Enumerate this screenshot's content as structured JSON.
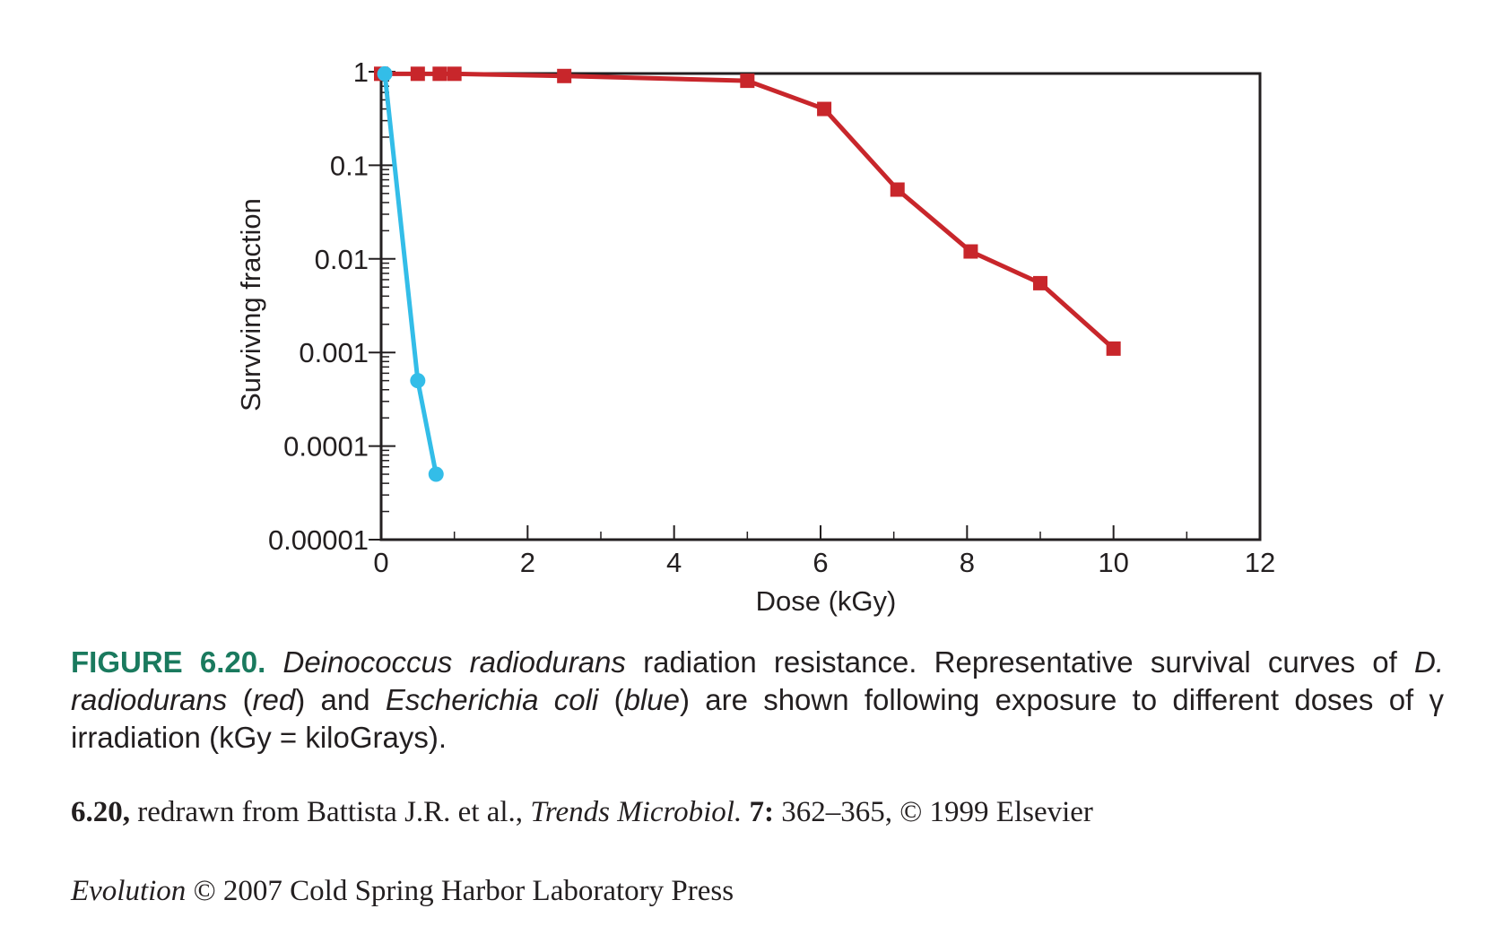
{
  "chart_data": {
    "type": "line",
    "title": "",
    "xlabel": "Dose (kGy)",
    "ylabel": "Surviving fraction",
    "xlim": [
      0,
      12
    ],
    "ylim": [
      1e-05,
      1
    ],
    "y_scale": "log",
    "x_ticks": [
      0,
      2,
      4,
      6,
      8,
      10,
      12
    ],
    "x_tick_labels": [
      "0",
      "2",
      "4",
      "6",
      "8",
      "10",
      "12"
    ],
    "y_ticks": [
      1,
      0.1,
      0.01,
      0.001,
      0.0001,
      1e-05
    ],
    "y_tick_labels": [
      "1",
      "0.1",
      "0.01",
      "0.001",
      "0.0001",
      "0.00001"
    ],
    "grid": false,
    "legend": "none",
    "series": [
      {
        "key": "d_radiodurans",
        "color": "#c8262b",
        "marker": "square",
        "x": [
          0,
          0.5,
          0.8,
          1.0,
          2.5,
          5.0,
          6.05,
          7.05,
          8.05,
          9.0,
          10.0
        ],
        "y": [
          0.95,
          0.95,
          0.95,
          0.95,
          0.9,
          0.8,
          0.4,
          0.055,
          0.012,
          0.0055,
          0.0011
        ]
      },
      {
        "key": "e_coli",
        "color": "#33bde8",
        "marker": "circle",
        "x": [
          0.05,
          0.5,
          0.75
        ],
        "y": [
          0.95,
          0.0005,
          5e-05
        ]
      }
    ]
  },
  "caption": {
    "label": "FIGURE 6.20.",
    "species1": "Deinococcus radiodurans",
    "text1": " radiation resistance. Representative survival curves of ",
    "species1_short": "D. radiodurans",
    "paren_open1": " (",
    "color1": "red",
    "text2": ") and ",
    "species2": "Escherichia coli",
    "paren_open2": " (",
    "color2": "blue",
    "text3": ") are shown following exposure to different doses of γ irradiation (kGy = kiloGrays)."
  },
  "credit": {
    "fig_ref": "6.20,",
    "text1": " redrawn from Battista J.R. et al., ",
    "journal": "Trends Microbiol.",
    "volume": " 7:",
    "text2": " 362–365, © 1999 Elsevier"
  },
  "book": {
    "title": "Evolution",
    "text": " © 2007 Cold Spring Harbor Laboratory Press"
  }
}
